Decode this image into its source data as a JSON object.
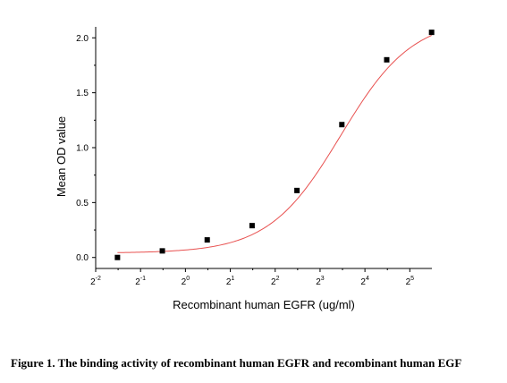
{
  "chart_data": {
    "type": "scatter",
    "xlabel": "Recombinant human EGFR (ug/ml)",
    "ylabel": "Mean OD value",
    "x_scale": "log2",
    "x_ticks": [
      {
        "value": 0.25,
        "base": "2",
        "exp": "-2"
      },
      {
        "value": 0.5,
        "base": "2",
        "exp": "-1"
      },
      {
        "value": 1,
        "base": "2",
        "exp": "0"
      },
      {
        "value": 2,
        "base": "2",
        "exp": "1"
      },
      {
        "value": 4,
        "base": "2",
        "exp": "2"
      },
      {
        "value": 8,
        "base": "2",
        "exp": "3"
      },
      {
        "value": 16,
        "base": "2",
        "exp": "4"
      },
      {
        "value": 32,
        "base": "2",
        "exp": "5"
      }
    ],
    "y_ticks": [
      "0.0",
      "0.5",
      "1.0",
      "1.5",
      "2.0"
    ],
    "xlim": [
      0.25,
      45
    ],
    "ylim": [
      -0.1,
      2.1
    ],
    "series": [
      {
        "points": [
          {
            "x": 0.35,
            "y": 0.0
          },
          {
            "x": 0.7,
            "y": 0.06
          },
          {
            "x": 1.4,
            "y": 0.16
          },
          {
            "x": 2.8,
            "y": 0.29
          },
          {
            "x": 5.6,
            "y": 0.61
          },
          {
            "x": 11.2,
            "y": 1.21
          },
          {
            "x": 22.4,
            "y": 1.8
          },
          {
            "x": 44.8,
            "y": 2.05
          }
        ],
        "marker_color": "#000000"
      }
    ],
    "fit_curve": {
      "type": "4PL",
      "bottom": 0.04,
      "top": 2.18,
      "ec50": 11.0,
      "hill": 1.8,
      "color": "#e8504f"
    },
    "grid": false
  },
  "caption": "Figure 1. The binding activity of recombinant human EGFR and recombinant human EGF"
}
